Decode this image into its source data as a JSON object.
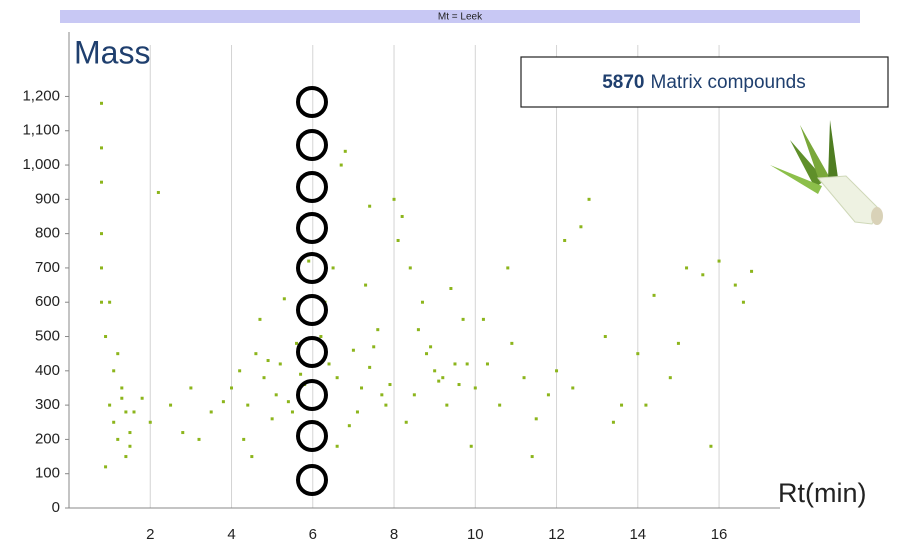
{
  "chart_data": {
    "type": "scatter",
    "header": "Mt = Leek",
    "y_label": "Mass",
    "x_label": "Rt(min)",
    "annotation": {
      "count": "5870",
      "text": "Matrix compounds"
    },
    "color": "#8cb51c",
    "grid": true,
    "xlim": [
      0,
      17.5
    ],
    "ylim": [
      0,
      1350
    ],
    "xticks": [
      2,
      4,
      6,
      8,
      10,
      12,
      14,
      16
    ],
    "yticks": [
      0,
      100,
      200,
      300,
      400,
      500,
      600,
      700,
      800,
      900,
      {
        "value": 1000,
        "label": "1,000"
      },
      {
        "value": 1100,
        "label": "1,100"
      },
      {
        "value": 1200,
        "label": "1,200"
      }
    ],
    "x": [
      0.8,
      0.8,
      0.8,
      0.8,
      0.8,
      0.8,
      0.9,
      1.0,
      1.1,
      1.2,
      1.3,
      1.4,
      1.5,
      1.0,
      1.2,
      1.4,
      0.9,
      1.1,
      1.3,
      1.5,
      1.6,
      1.8,
      2.0,
      2.2,
      2.5,
      2.8,
      3.0,
      3.2,
      3.5,
      3.8,
      4.0,
      4.2,
      4.4,
      4.6,
      4.8,
      5.0,
      5.2,
      5.4,
      5.6,
      5.8,
      4.3,
      4.7,
      5.1,
      5.5,
      5.9,
      4.5,
      4.9,
      5.3,
      5.7,
      6.1,
      6.2,
      6.4,
      6.6,
      6.8,
      7.0,
      7.2,
      7.4,
      7.6,
      7.8,
      6.3,
      6.7,
      7.1,
      7.5,
      7.9,
      6.5,
      6.9,
      7.3,
      7.7,
      6.6,
      7.4,
      8.0,
      8.2,
      8.4,
      8.6,
      8.8,
      9.0,
      9.2,
      9.4,
      9.6,
      9.8,
      8.1,
      8.5,
      8.9,
      9.3,
      9.7,
      8.3,
      8.7,
      9.1,
      9.5,
      9.9,
      10.0,
      10.3,
      10.6,
      10.9,
      11.2,
      11.5,
      11.8,
      10.2,
      10.8,
      11.4,
      12.0,
      12.4,
      12.8,
      13.2,
      13.6,
      14.0,
      14.4,
      14.8,
      15.2,
      15.6,
      16.0,
      16.4,
      16.8,
      12.6,
      13.4,
      14.2,
      15.0,
      15.8,
      16.6,
      12.2
    ],
    "y": [
      1180,
      1050,
      950,
      800,
      700,
      600,
      500,
      300,
      250,
      200,
      350,
      280,
      220,
      600,
      450,
      150,
      120,
      400,
      320,
      180,
      280,
      320,
      250,
      920,
      300,
      220,
      350,
      200,
      280,
      310,
      350,
      400,
      300,
      450,
      380,
      260,
      420,
      310,
      480,
      360,
      200,
      550,
      330,
      280,
      720,
      150,
      430,
      610,
      390,
      250,
      500,
      420,
      380,
      1040,
      460,
      350,
      410,
      520,
      300,
      600,
      1000,
      280,
      470,
      360,
      700,
      240,
      650,
      330,
      180,
      880,
      900,
      850,
      700,
      520,
      450,
      400,
      380,
      640,
      360,
      420,
      780,
      330,
      470,
      300,
      550,
      250,
      600,
      370,
      420,
      180,
      350,
      420,
      300,
      480,
      380,
      260,
      330,
      550,
      700,
      150,
      400,
      350,
      900,
      500,
      300,
      450,
      620,
      380,
      700,
      680,
      720,
      650,
      690,
      820,
      250,
      300,
      480,
      180,
      600,
      780
    ]
  }
}
